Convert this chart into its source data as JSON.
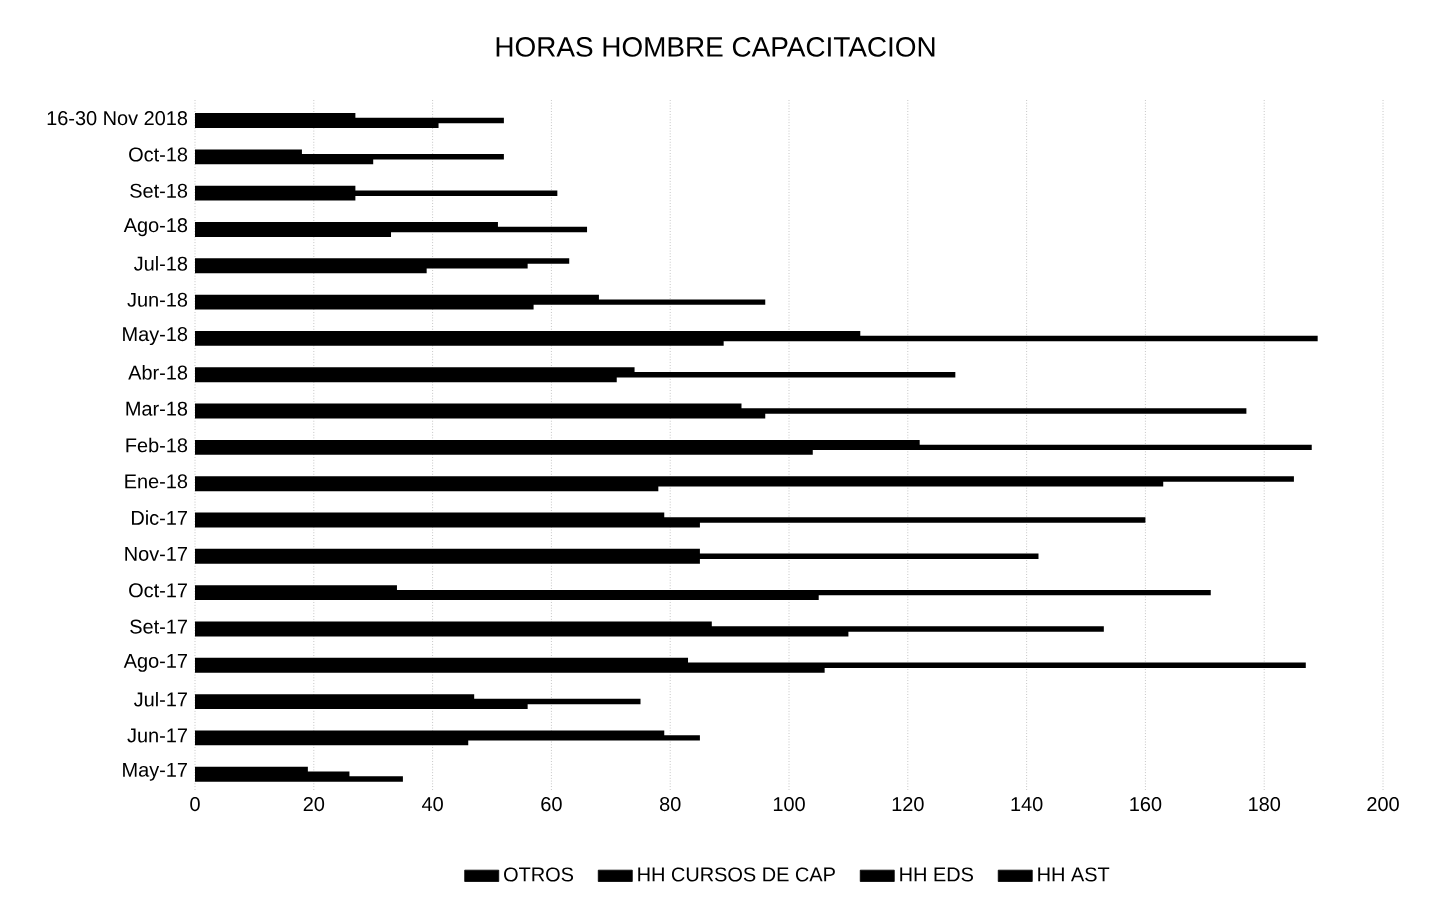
{
  "chart_data": {
    "type": "bar",
    "orientation": "horizontal",
    "title": "HORAS HOMBRE CAPACITACION",
    "categories": [
      "16-30 Nov 2018",
      "Oct-18",
      "Set-18",
      "Ago-18",
      "Jul-18",
      "Jun-18",
      "May-18",
      "Abr-18",
      "Mar-18",
      "Feb-18",
      "Ene-18",
      "Dic-17",
      "Nov-17",
      "Oct-17",
      "Set-17",
      "Ago-17",
      "Jul-17",
      "Jun-17",
      "May-17"
    ],
    "series": [
      {
        "name": "OTROS",
        "color": "#000000",
        "values": [
          null,
          null,
          null,
          null,
          null,
          null,
          null,
          null,
          null,
          null,
          null,
          null,
          null,
          null,
          null,
          null,
          null,
          null,
          null
        ]
      },
      {
        "name": "HH CURSOS DE CAP",
        "color": "#000000",
        "values": [
          27,
          18,
          27,
          51,
          63,
          68,
          112,
          74,
          92,
          122,
          185,
          79,
          85,
          34,
          87,
          83,
          47,
          79,
          19
        ]
      },
      {
        "name": "HH EDS",
        "color": "#000000",
        "values": [
          52,
          52,
          61,
          66,
          56,
          96,
          189,
          128,
          177,
          188,
          163,
          160,
          142,
          171,
          153,
          187,
          75,
          85,
          26
        ]
      },
      {
        "name": "HH AST",
        "color": "#000000",
        "values": [
          41,
          30,
          27,
          33,
          39,
          57,
          89,
          71,
          96,
          104,
          78,
          85,
          85,
          105,
          110,
          106,
          56,
          46,
          35
        ]
      }
    ],
    "xlim": [
      0,
      200
    ],
    "xticks": [
      0,
      20,
      40,
      60,
      80,
      100,
      120,
      140,
      160,
      180,
      200
    ],
    "grid": "x",
    "legend": "bottom"
  }
}
